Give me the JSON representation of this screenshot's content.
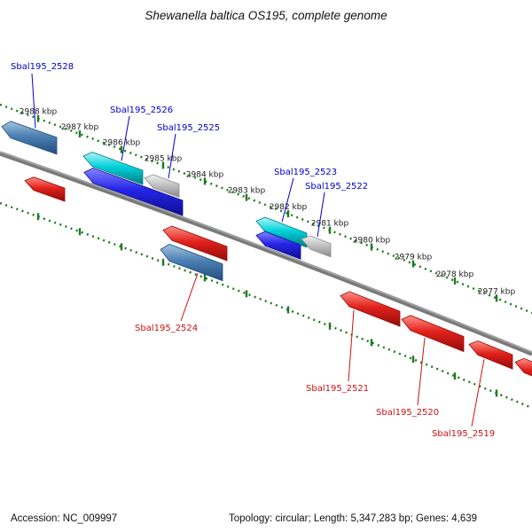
{
  "title": "Shewanella baltica OS195, complete genome",
  "footer": {
    "accession": "Accession: NC_009997",
    "stats": "Topology: circular; Length: 5,347,283 bp; Genes: 4,639"
  },
  "ruler": {
    "unit": "kbp",
    "tick_labels": [
      "2988 kbp",
      "2987 kbp",
      "2986 kbp",
      "2985 kbp",
      "2984 kbp",
      "2983 kbp",
      "2982 kbp",
      "2981 kbp",
      "2980 kbp",
      "2979 kbp",
      "2978 kbp",
      "2977 kbp"
    ]
  },
  "colors": {
    "tick": "#1e7a1e",
    "backbone": "#7a7a7a",
    "label_forward": "#0000cc",
    "label_reverse": "#cc1111",
    "gene_palette": {
      "steelblue": "#4c7fb2",
      "cyan": "#00d2da",
      "blue": "#2525e8",
      "gray": "#c2c2c2",
      "red": "#e2211c"
    }
  },
  "genes": [
    {
      "name": "Sbal195_2528",
      "color": "steelblue",
      "strand": "forward"
    },
    {
      "name": "",
      "color": "red",
      "strand": "reverse"
    },
    {
      "name": "Sbal195_2526",
      "color": "cyan",
      "strand": "forward"
    },
    {
      "name": "Sbal195_2525",
      "color": "gray",
      "strand": "forward"
    },
    {
      "name": "",
      "color": "blue",
      "strand": "forward"
    },
    {
      "name": "",
      "color": "red",
      "strand": "reverse"
    },
    {
      "name": "Sbal195_2524",
      "color": "steelblue",
      "strand": "reverse"
    },
    {
      "name": "Sbal195_2523",
      "color": "cyan",
      "strand": "forward"
    },
    {
      "name": "",
      "color": "blue",
      "strand": "forward"
    },
    {
      "name": "Sbal195_2522",
      "color": "gray",
      "strand": "forward"
    },
    {
      "name": "Sbal195_2521",
      "color": "red",
      "strand": "reverse"
    },
    {
      "name": "Sbal195_2520",
      "color": "red",
      "strand": "reverse"
    },
    {
      "name": "Sbal195_2519",
      "color": "red",
      "strand": "reverse"
    },
    {
      "name": "",
      "color": "red",
      "strand": "reverse"
    }
  ]
}
